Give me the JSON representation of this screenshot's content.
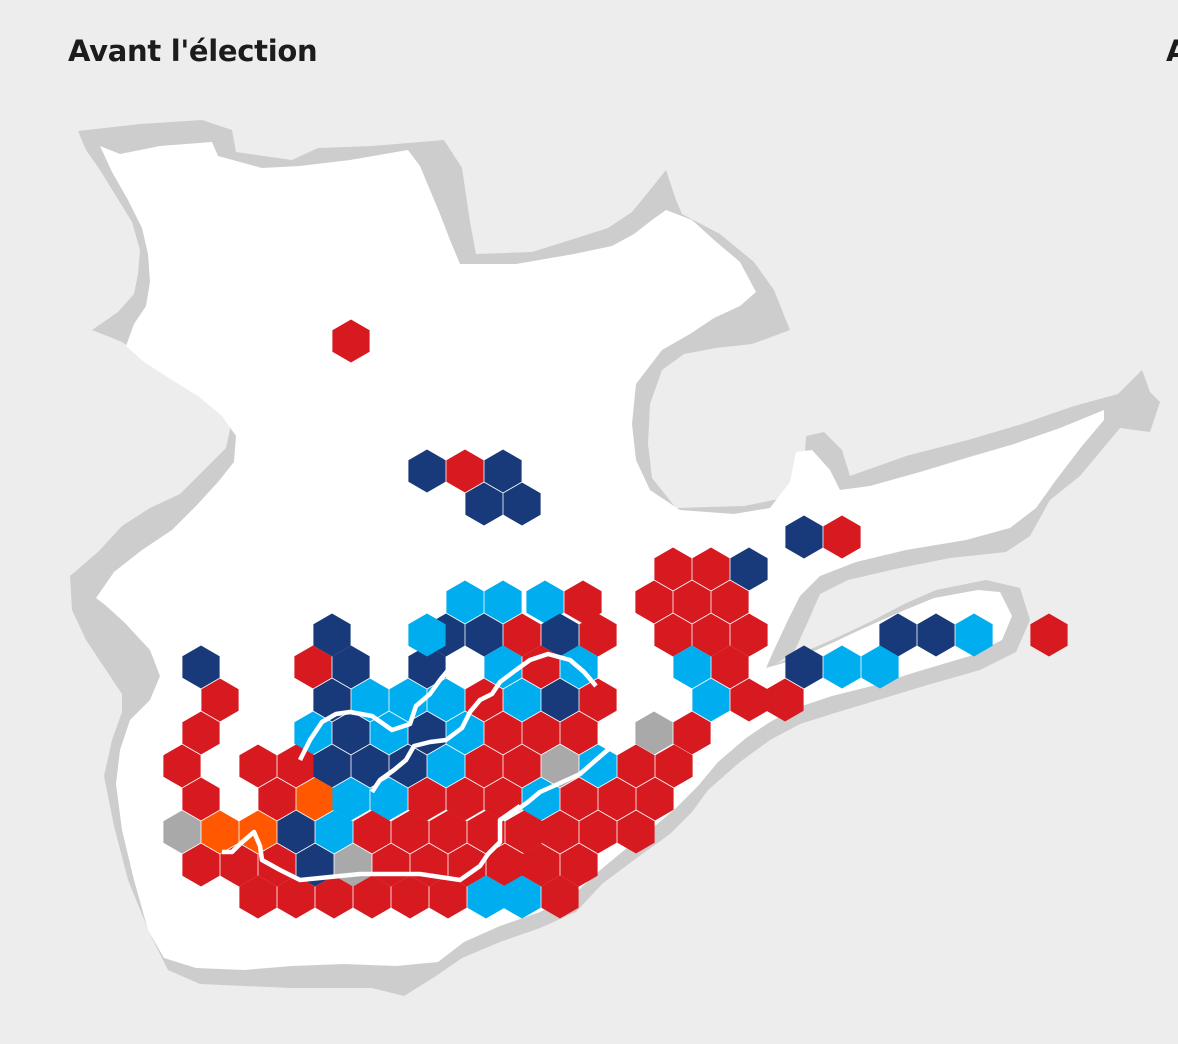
{
  "panel": {
    "title": "Avant l'élection",
    "next_title": "A"
  },
  "colors": {
    "background": "#ededed",
    "land": "#ffffff",
    "land_shadow": "#cdcdcd",
    "boundary": "#ffffff"
  },
  "parties": {
    "R": {
      "color": "#d71920"
    },
    "N": {
      "color": "#183a7a"
    },
    "L": {
      "color": "#00aeef"
    },
    "O": {
      "color": "#ff5800"
    },
    "G": {
      "color": "#a9a9a9"
    }
  },
  "ridings": [
    "R",
    "N",
    "R",
    "N",
    "N",
    "N",
    "N",
    "R",
    "R",
    "R",
    "N",
    "L",
    "L",
    "L",
    "R",
    "R",
    "R",
    "R",
    "R",
    "N",
    "R",
    "R",
    "R",
    "R",
    "N",
    "N",
    "N",
    "L",
    "R",
    "N",
    "R",
    "N",
    "N",
    "N",
    "N",
    "L",
    "L",
    "R",
    "L",
    "L",
    "R",
    "N",
    "L",
    "L",
    "R",
    "N",
    "L",
    "L",
    "L",
    "R",
    "L",
    "N",
    "R",
    "L",
    "R",
    "R",
    "R",
    "L",
    "N",
    "L",
    "N",
    "L",
    "R",
    "R",
    "R",
    "G",
    "R",
    "R",
    "R",
    "R",
    "N",
    "N",
    "N",
    "L",
    "R",
    "R",
    "G",
    "L",
    "R",
    "R",
    "R",
    "R",
    "O",
    "L",
    "L",
    "R",
    "R",
    "R",
    "L",
    "R",
    "R",
    "R",
    "G",
    "O",
    "O",
    "N",
    "L",
    "R",
    "R",
    "R",
    "R",
    "R",
    "R",
    "R",
    "R",
    "R",
    "R",
    "R",
    "N",
    "G",
    "R",
    "R",
    "R",
    "R",
    "R",
    "R",
    "R",
    "R",
    "R",
    "R",
    "R",
    "R",
    "L",
    "L",
    "R",
    "N",
    "R",
    "R",
    "N",
    "R",
    "R",
    "N",
    "R",
    "R",
    "R",
    "R",
    "R"
  ]
}
